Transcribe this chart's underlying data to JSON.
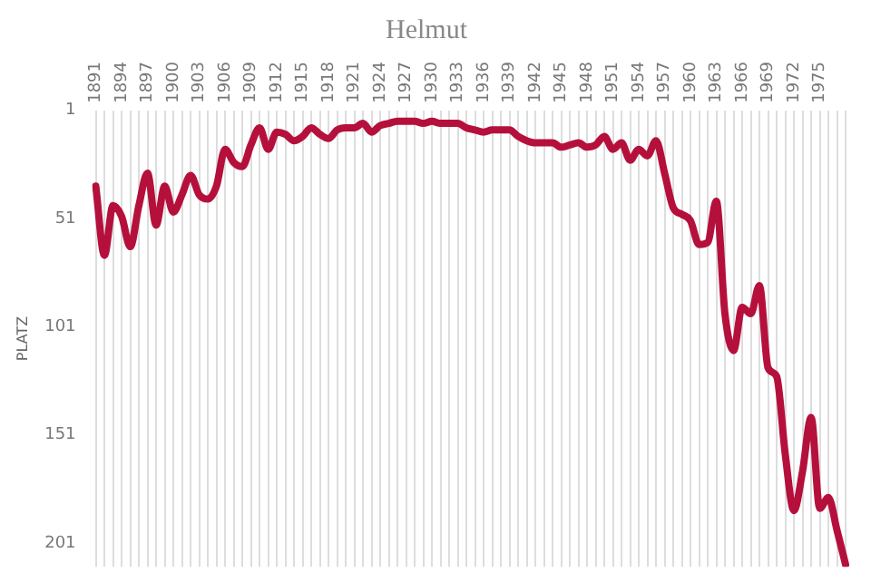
{
  "chart_data": {
    "type": "line",
    "title": "Helmut",
    "ylabel": "PLATZ",
    "categories": [
      "1891",
      null,
      null,
      "1894",
      null,
      null,
      "1897",
      null,
      null,
      "1900",
      null,
      null,
      "1903",
      null,
      null,
      "1906",
      null,
      null,
      "1909",
      null,
      null,
      "1912",
      null,
      null,
      "1915",
      null,
      null,
      "1918",
      null,
      null,
      "1921",
      null,
      null,
      "1924",
      null,
      null,
      "1927",
      null,
      null,
      "1930",
      null,
      null,
      "1933",
      null,
      null,
      "1936",
      null,
      null,
      "1939",
      null,
      null,
      "1942",
      null,
      null,
      "1945",
      null,
      null,
      "1948",
      null,
      null,
      "1951",
      null,
      null,
      "1954",
      null,
      null,
      "1957",
      null,
      null,
      "1960",
      null,
      null,
      "1963",
      null,
      null,
      "1966",
      null,
      null,
      "1969",
      null,
      null,
      "1972",
      null,
      null,
      "1975",
      null,
      null,
      null
    ],
    "series": [
      {
        "color": "#b5103c",
        "values": [
          36,
          68,
          45,
          50,
          64,
          45,
          30,
          54,
          36,
          48,
          40,
          31,
          40,
          42,
          36,
          19,
          25,
          27,
          17,
          9,
          19,
          11,
          12,
          15,
          13,
          9,
          12,
          14,
          10,
          9,
          9,
          7,
          11,
          8,
          7,
          6,
          6,
          6,
          7,
          6,
          7,
          7,
          7,
          9,
          10,
          11,
          10,
          10,
          10,
          13,
          15,
          16,
          16,
          16,
          18,
          17,
          16,
          18,
          17,
          13,
          19,
          16,
          24,
          19,
          22,
          15,
          30,
          46,
          49,
          52,
          63,
          62,
          43,
          95,
          112,
          92,
          95,
          82,
          120,
          124,
          160,
          186,
          168,
          143,
          185,
          180,
          195,
          211
        ]
      }
    ],
    "ylim": [
      212,
      1
    ],
    "yticks": [
      1,
      51,
      101,
      151,
      201
    ],
    "grid": "x",
    "legend": false,
    "marker": "none",
    "line_style": "solid"
  }
}
